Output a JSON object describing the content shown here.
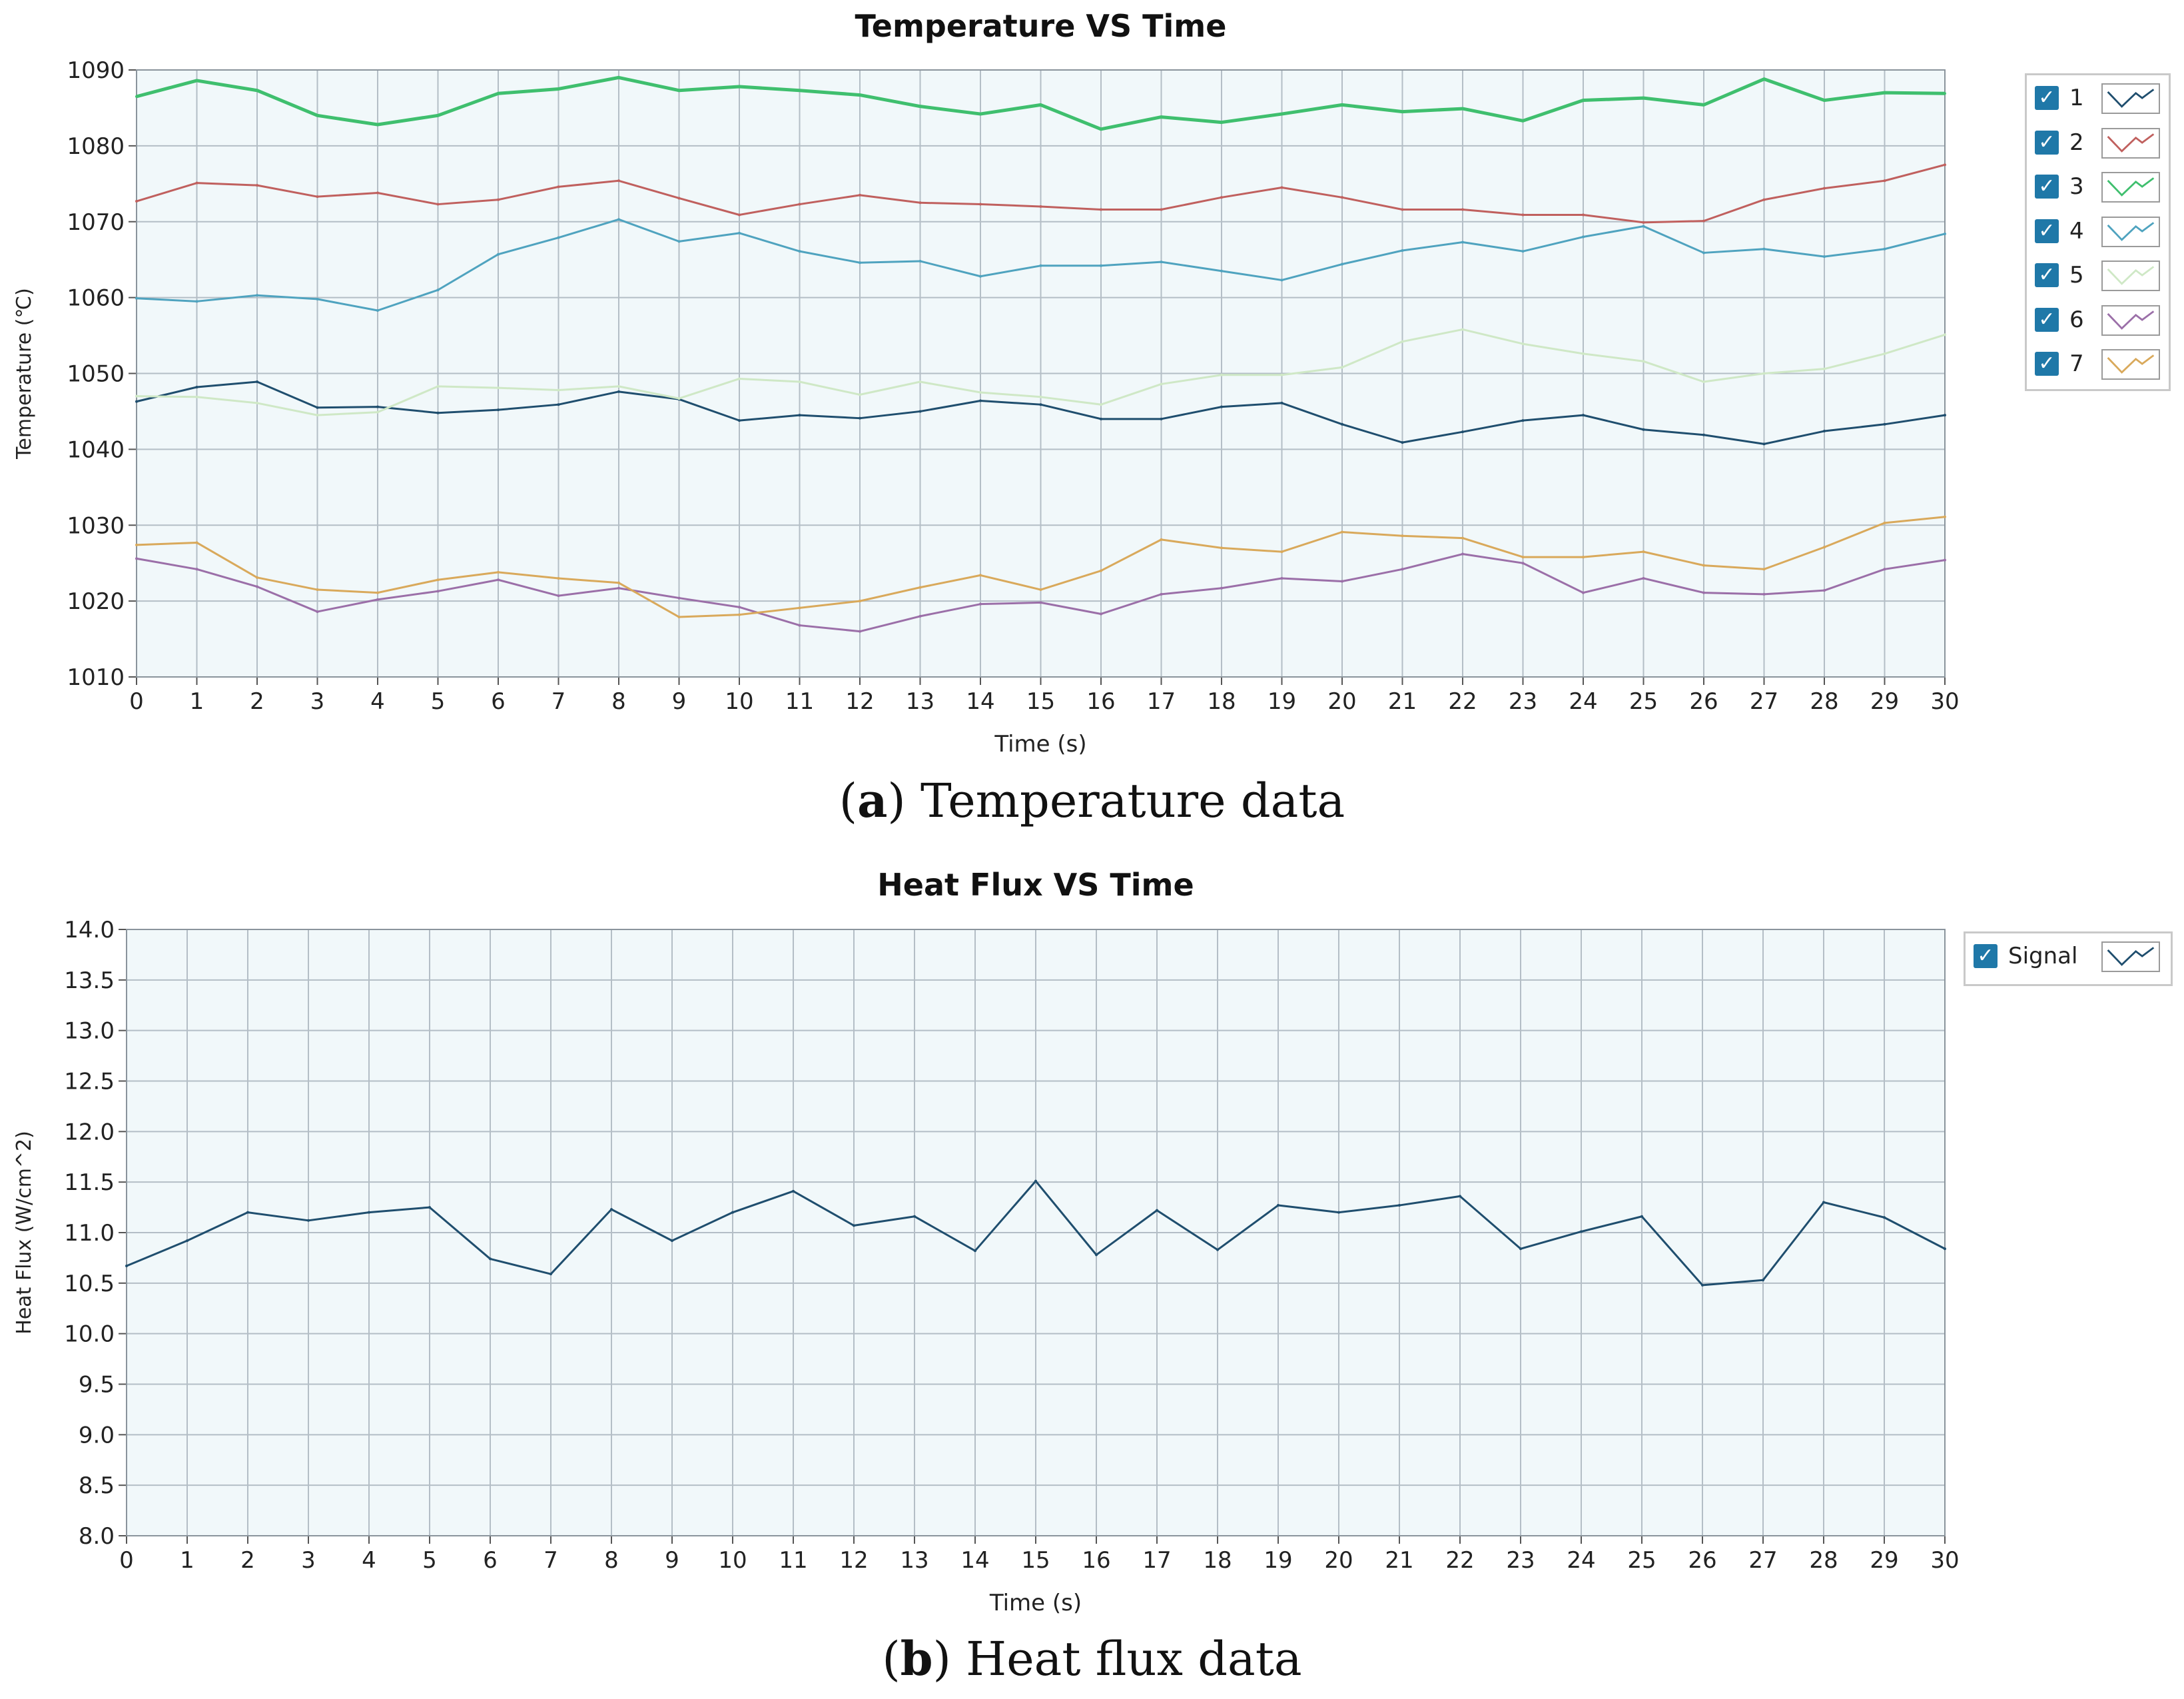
{
  "chart_data": [
    {
      "type": "line",
      "title": "Temperature VS Time",
      "xlabel": "Time (s)",
      "ylabel": "Temperature (℃)",
      "xlim": [
        0,
        30
      ],
      "ylim": [
        1010,
        1090
      ],
      "xticks": [
        "0",
        "1",
        "2",
        "3",
        "4",
        "5",
        "6",
        "7",
        "8",
        "9",
        "10",
        "11",
        "12",
        "13",
        "14",
        "15",
        "16",
        "17",
        "18",
        "19",
        "20",
        "21",
        "22",
        "23",
        "24",
        "25",
        "26",
        "27",
        "28",
        "29",
        "30"
      ],
      "yticks": [
        "1090",
        "1080",
        "1070",
        "1060",
        "1050",
        "1040",
        "1030",
        "1020",
        "1010"
      ],
      "grid": true,
      "legend_position": "right",
      "x": [
        0,
        1,
        2,
        3,
        4,
        5,
        6,
        7,
        8,
        9,
        10,
        11,
        12,
        13,
        14,
        15,
        16,
        17,
        18,
        19,
        20,
        21,
        22,
        23,
        24,
        25,
        26,
        27,
        28,
        29,
        30
      ],
      "series": [
        {
          "name": "1",
          "color": "#1f4e6e",
          "checked": "✓",
          "values": [
            1046.3,
            1048.2,
            1048.9,
            1045.5,
            1045.6,
            1044.8,
            1045.2,
            1045.9,
            1047.6,
            1046.6,
            1043.8,
            1044.5,
            1044.1,
            1045.0,
            1046.4,
            1045.9,
            1044.0,
            1044.0,
            1045.6,
            1046.1,
            1043.3,
            1040.9,
            1042.3,
            1043.8,
            1044.5,
            1042.6,
            1041.9,
            1040.7,
            1042.4,
            1043.3,
            1044.5
          ]
        },
        {
          "name": "2",
          "color": "#c0605e",
          "checked": "✓",
          "values": [
            1072.7,
            1075.1,
            1074.8,
            1073.3,
            1073.8,
            1072.3,
            1072.9,
            1074.6,
            1075.4,
            1073.1,
            1070.9,
            1072.3,
            1073.5,
            1072.5,
            1072.3,
            1072.0,
            1071.6,
            1071.6,
            1073.2,
            1074.5,
            1073.2,
            1071.6,
            1071.6,
            1070.9,
            1070.9,
            1069.9,
            1070.1,
            1072.9,
            1074.4,
            1075.4,
            1077.5
          ]
        },
        {
          "name": "3",
          "color": "#3fbf6e",
          "checked": "✓",
          "values": [
            1086.5,
            1088.6,
            1087.3,
            1084.0,
            1082.8,
            1084.0,
            1086.9,
            1087.5,
            1089.0,
            1087.3,
            1087.8,
            1087.3,
            1086.7,
            1085.2,
            1084.2,
            1085.4,
            1082.2,
            1083.8,
            1083.1,
            1084.2,
            1085.4,
            1084.5,
            1084.9,
            1083.3,
            1086.0,
            1086.3,
            1085.4,
            1088.8,
            1086.0,
            1087.0,
            1086.9
          ]
        },
        {
          "name": "4",
          "color": "#4fa3bf",
          "checked": "✓",
          "values": [
            1059.9,
            1059.5,
            1060.3,
            1059.8,
            1058.3,
            1061.0,
            1065.7,
            1067.9,
            1070.3,
            1067.4,
            1068.5,
            1066.1,
            1064.6,
            1064.8,
            1062.8,
            1064.2,
            1064.2,
            1064.7,
            1063.5,
            1062.3,
            1064.4,
            1066.2,
            1067.3,
            1066.1,
            1068.0,
            1069.4,
            1065.9,
            1066.4,
            1065.4,
            1066.4,
            1068.4
          ]
        },
        {
          "name": "5",
          "color": "#cfe8c6",
          "checked": "✓",
          "values": [
            1047.0,
            1046.9,
            1046.1,
            1044.5,
            1044.9,
            1048.3,
            1048.1,
            1047.8,
            1048.3,
            1046.7,
            1049.3,
            1048.9,
            1047.2,
            1048.9,
            1047.5,
            1046.9,
            1045.9,
            1048.6,
            1049.8,
            1049.8,
            1050.8,
            1054.2,
            1055.8,
            1053.9,
            1052.6,
            1051.6,
            1048.9,
            1050.0,
            1050.6,
            1052.6,
            1055.1
          ]
        },
        {
          "name": "6",
          "color": "#9b6fa8",
          "checked": "✓",
          "values": [
            1025.6,
            1024.2,
            1021.9,
            1018.6,
            1020.2,
            1021.3,
            1022.8,
            1020.7,
            1021.7,
            1020.4,
            1019.2,
            1016.8,
            1016.0,
            1018.0,
            1019.6,
            1019.8,
            1018.3,
            1020.9,
            1021.7,
            1023.0,
            1022.6,
            1024.2,
            1026.2,
            1025.0,
            1021.1,
            1023.0,
            1021.1,
            1020.9,
            1021.4,
            1024.2,
            1025.4
          ]
        },
        {
          "name": "7",
          "color": "#d9a95b",
          "checked": "✓",
          "values": [
            1027.4,
            1027.7,
            1023.1,
            1021.5,
            1021.1,
            1022.8,
            1023.8,
            1023.0,
            1022.4,
            1017.9,
            1018.2,
            1019.1,
            1020.0,
            1021.8,
            1023.4,
            1021.5,
            1024.0,
            1028.1,
            1027.0,
            1026.5,
            1029.1,
            1028.6,
            1028.3,
            1025.8,
            1025.8,
            1026.5,
            1024.7,
            1024.2,
            1027.1,
            1030.3,
            1031.1
          ]
        }
      ]
    },
    {
      "type": "line",
      "title": "Heat Flux VS Time",
      "xlabel": "Time (s)",
      "ylabel": "Heat Flux (W/cm^2)",
      "xlim": [
        0,
        30
      ],
      "ylim": [
        8.0,
        14.0
      ],
      "xticks": [
        "0",
        "1",
        "2",
        "3",
        "4",
        "5",
        "6",
        "7",
        "8",
        "9",
        "10",
        "11",
        "12",
        "13",
        "14",
        "15",
        "16",
        "17",
        "18",
        "19",
        "20",
        "21",
        "22",
        "23",
        "24",
        "25",
        "26",
        "27",
        "28",
        "29",
        "30"
      ],
      "yticks": [
        "14.0",
        "13.5",
        "13.0",
        "12.5",
        "12.0",
        "11.5",
        "11.0",
        "10.5",
        "10.0",
        "9.5",
        "9.0",
        "8.5",
        "8.0"
      ],
      "grid": true,
      "legend_position": "right",
      "x": [
        0,
        1,
        2,
        3,
        4,
        5,
        6,
        7,
        8,
        9,
        10,
        11,
        12,
        13,
        14,
        15,
        16,
        17,
        18,
        19,
        20,
        21,
        22,
        23,
        24,
        25,
        26,
        27,
        28,
        29,
        30
      ],
      "series": [
        {
          "name": "Signal",
          "color": "#1f4e6e",
          "checked": "✓",
          "values": [
            10.67,
            10.92,
            11.2,
            11.12,
            11.2,
            11.25,
            10.74,
            10.59,
            11.23,
            10.92,
            11.2,
            11.41,
            11.07,
            11.16,
            10.82,
            11.51,
            10.78,
            11.22,
            10.83,
            11.27,
            11.2,
            11.27,
            11.36,
            10.84,
            11.01,
            11.16,
            10.48,
            10.53,
            11.3,
            11.15,
            10.84
          ]
        }
      ]
    }
  ],
  "captions": [
    {
      "label": "a",
      "open": "(",
      "close": ")",
      "text": " Temperature data"
    },
    {
      "label": "b",
      "open": "(",
      "close": ")",
      "text": " Heat flux data"
    }
  ]
}
